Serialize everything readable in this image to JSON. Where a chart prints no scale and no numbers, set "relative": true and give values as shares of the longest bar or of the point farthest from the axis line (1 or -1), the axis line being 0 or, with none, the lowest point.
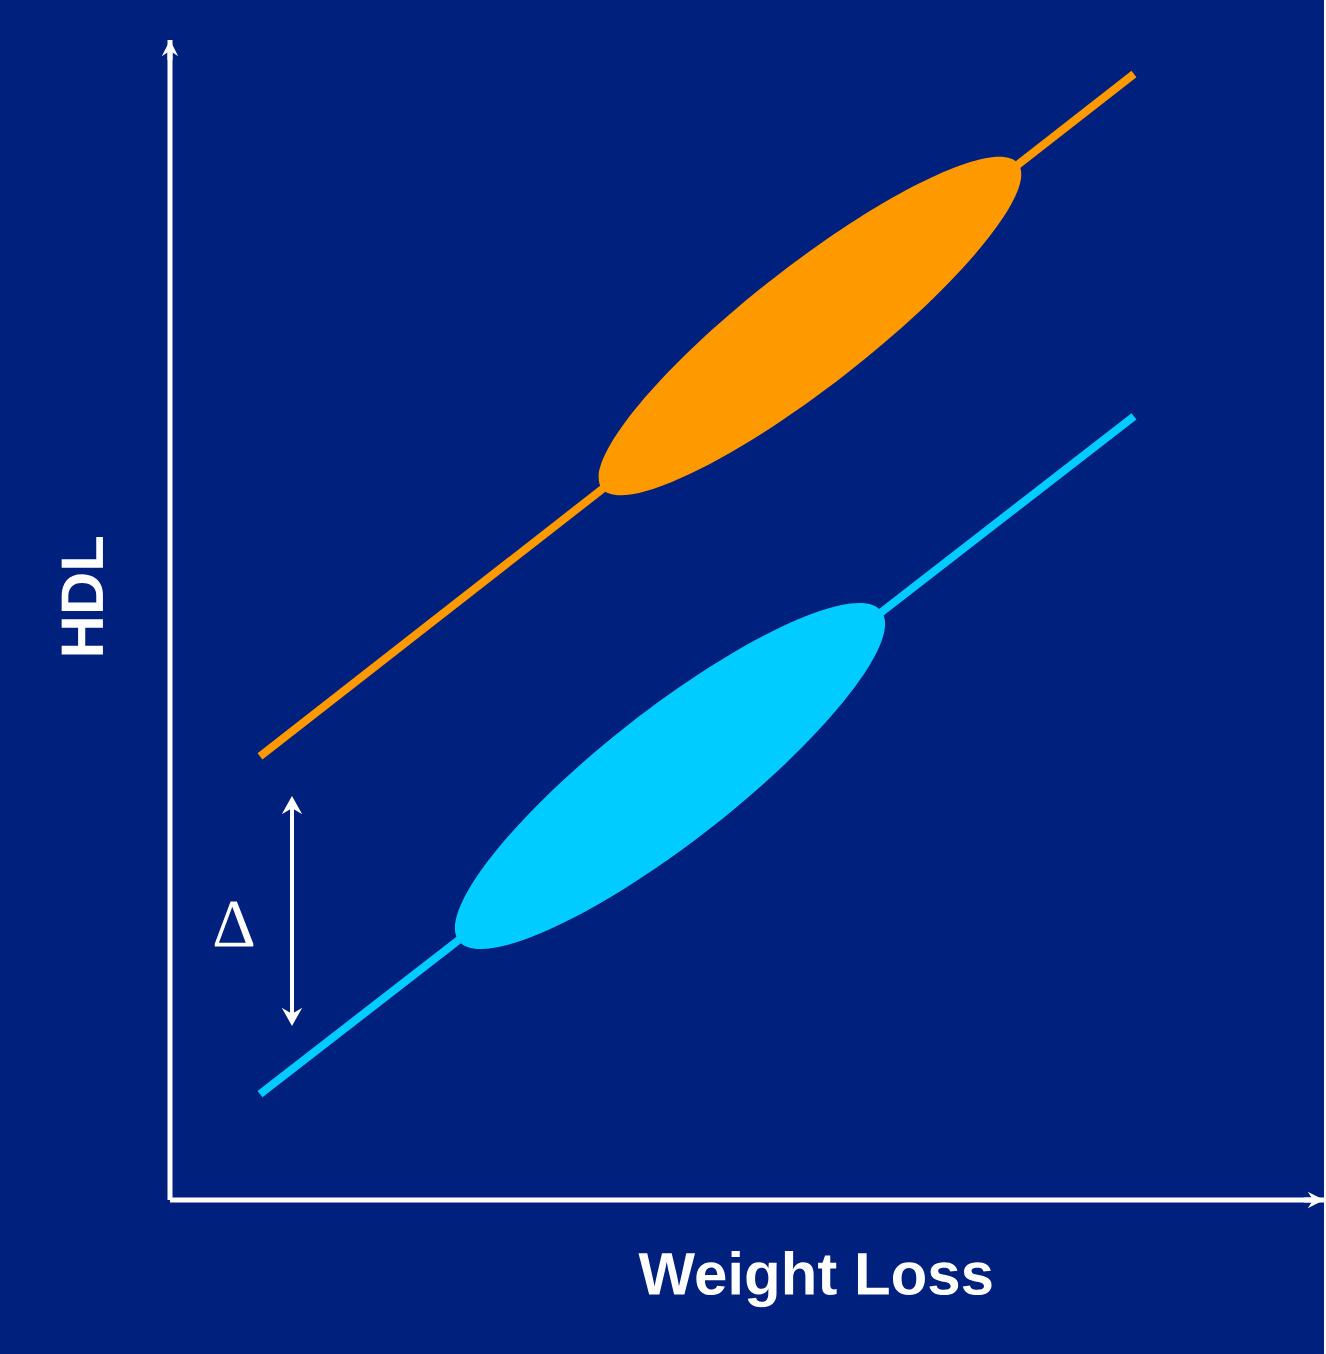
{
  "chart_data": {
    "type": "line",
    "relative": true,
    "xlabel": "Weight Loss",
    "ylabel": "HDL",
    "categories": [
      null,
      null
    ],
    "series": [
      {
        "color": "#ff9900",
        "values": [
          0.394,
          1
        ]
      },
      {
        "color": "#00ccff",
        "values": [
          0.094,
          0.696
        ]
      }
    ],
    "annotations": [
      "Δ"
    ]
  }
}
